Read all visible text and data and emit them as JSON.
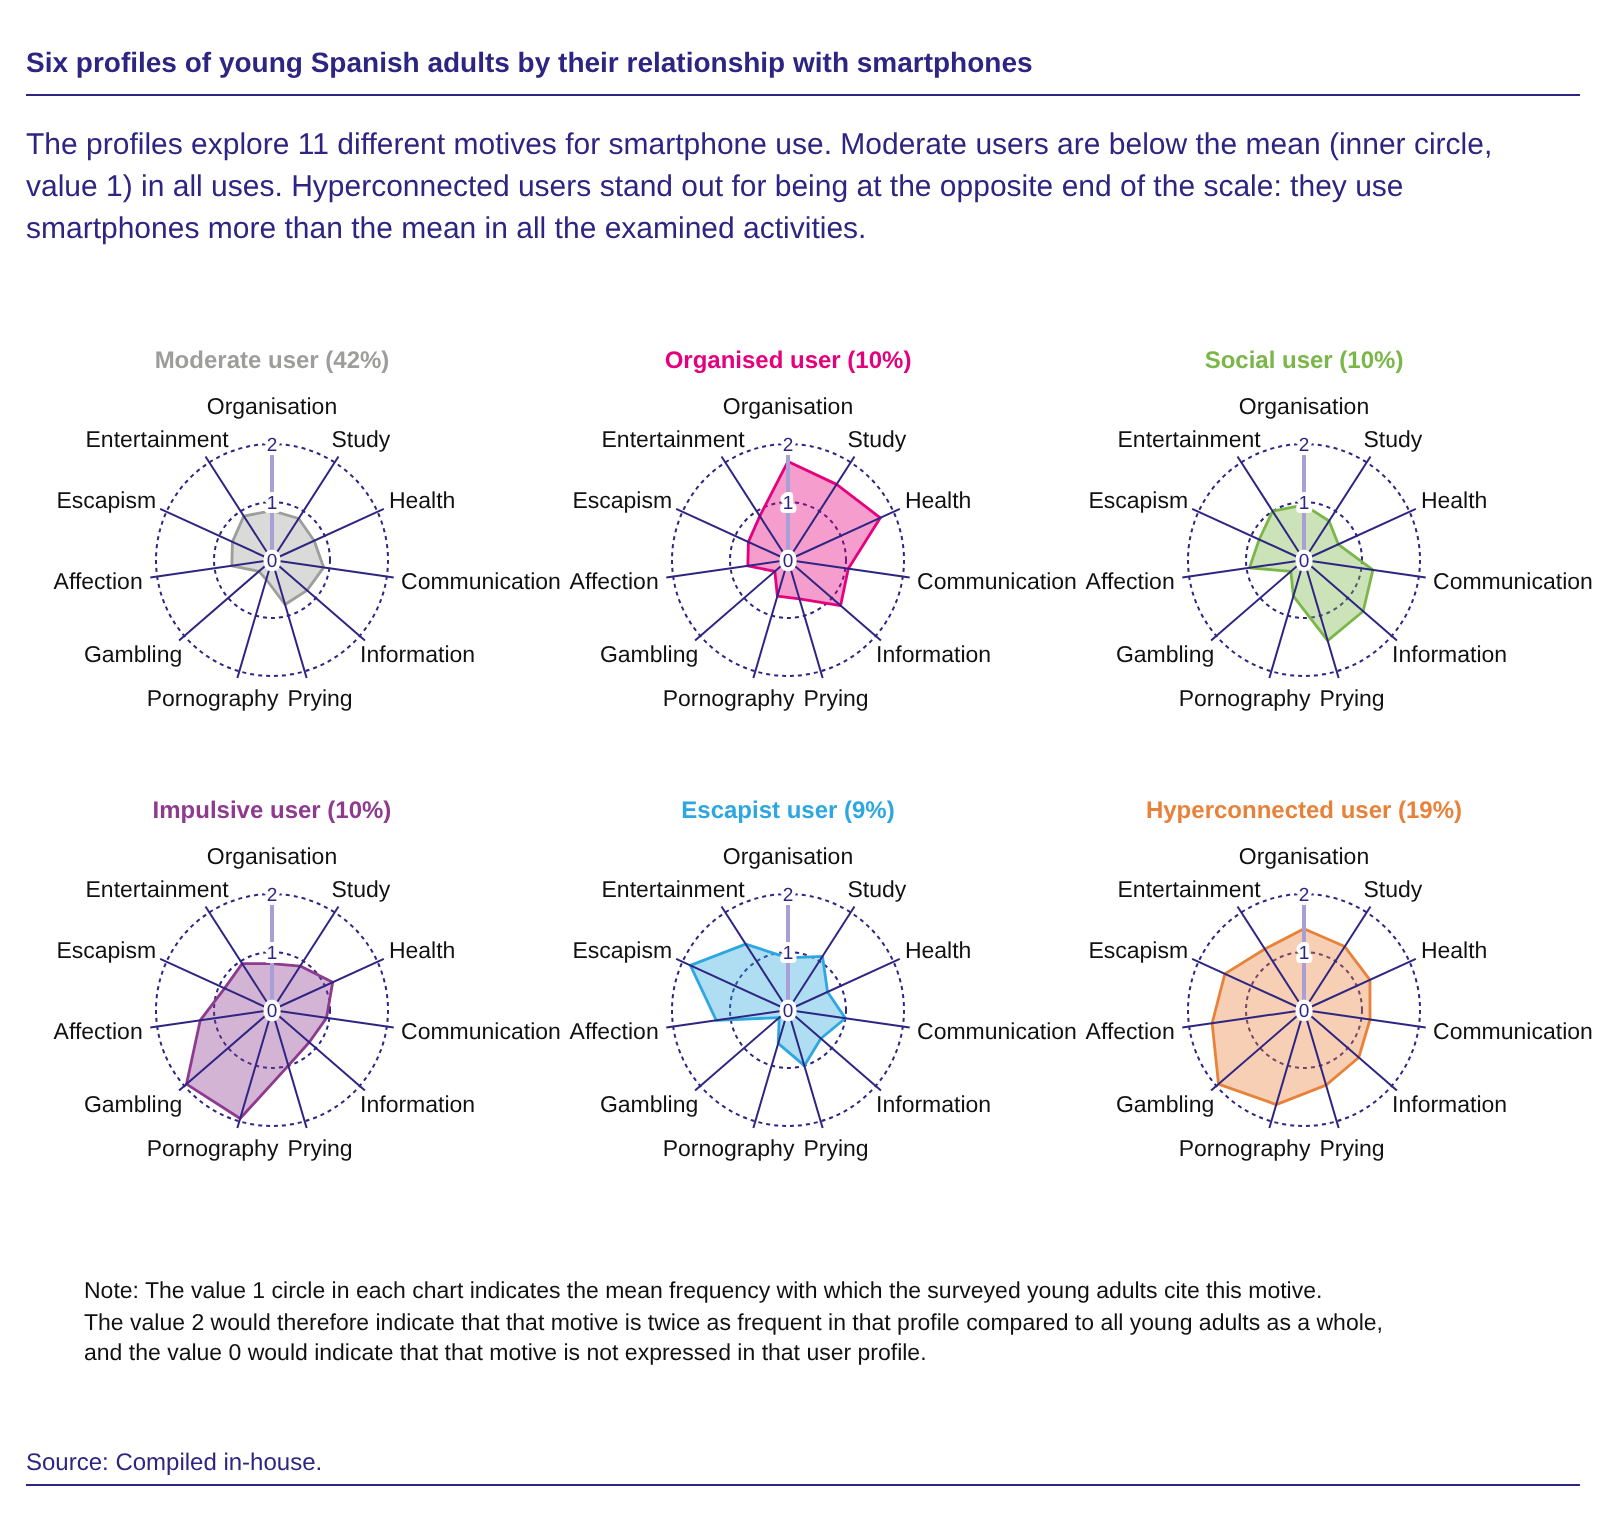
{
  "chart_data": [
    {
      "type": "other",
      "title": "Six profiles of young Spanish adults by their relationship with smartphones",
      "subtitle": "The profiles explore 11 different motives for smartphone use. Moderate users are below the mean (inner circle, value 1) in all uses. Hyperconnected users stand out for being at the opposite end of the scale: they use smartphones more than the mean in all the examined activities."
    },
    {
      "type": "radar",
      "title": "Moderate user (42%)",
      "categories": [
        "Organisation",
        "Study",
        "Health",
        "Communication",
        "Information",
        "Prying",
        "Pornography",
        "Gambling",
        "Affection",
        "Escapism",
        "Entertainment"
      ],
      "series": [
        {
          "color": "#9d9d9c",
          "values": [
            0.85,
            0.85,
            0.8,
            0.9,
            0.8,
            0.8,
            0.35,
            0.3,
            0.7,
            0.75,
            0.9
          ]
        }
      ],
      "ylim": [
        0,
        2
      ],
      "yticks": [
        0,
        1,
        2
      ],
      "grid": true
    },
    {
      "type": "radar",
      "title": "Organised user (10%)",
      "categories": [
        "Organisation",
        "Study",
        "Health",
        "Communication",
        "Information",
        "Prying",
        "Pornography",
        "Gambling",
        "Affection",
        "Escapism",
        "Entertainment"
      ],
      "series": [
        {
          "color": "#e5007e",
          "values": [
            1.7,
            1.55,
            1.75,
            1.05,
            1.2,
            0.7,
            0.65,
            0.3,
            0.7,
            0.75,
            0.9
          ]
        }
      ],
      "ylim": [
        0,
        2
      ],
      "yticks": [
        0,
        1,
        2
      ],
      "grid": true
    },
    {
      "type": "radar",
      "title": "Social user (10%)",
      "categories": [
        "Organisation",
        "Study",
        "Health",
        "Communication",
        "Information",
        "Prying",
        "Pornography",
        "Gambling",
        "Affection",
        "Escapism",
        "Entertainment"
      ],
      "series": [
        {
          "color": "#7ab648",
          "values": [
            0.95,
            0.8,
            0.65,
            1.2,
            1.35,
            1.45,
            0.65,
            0.3,
            0.95,
            0.85,
            1.0
          ]
        }
      ],
      "ylim": [
        0,
        2
      ],
      "yticks": [
        0,
        1,
        2
      ],
      "grid": true
    },
    {
      "type": "radar",
      "title": "Impulsive user (10%)",
      "categories": [
        "Organisation",
        "Study",
        "Health",
        "Communication",
        "Information",
        "Prying",
        "Pornography",
        "Gambling",
        "Affection",
        "Escapism",
        "Entertainment"
      ],
      "series": [
        {
          "color": "#8e3a8e",
          "values": [
            0.8,
            0.9,
            1.15,
            0.95,
            0.85,
            1.0,
            1.95,
            1.95,
            1.25,
            0.9,
            0.95
          ]
        }
      ],
      "ylim": [
        0,
        2
      ],
      "yticks": [
        0,
        1,
        2
      ],
      "grid": true
    },
    {
      "type": "radar",
      "title": "Escapist user (9%)",
      "categories": [
        "Organisation",
        "Study",
        "Health",
        "Communication",
        "Information",
        "Prying",
        "Pornography",
        "Gambling",
        "Affection",
        "Escapism",
        "Entertainment"
      ],
      "series": [
        {
          "color": "#2ea7e0",
          "values": [
            0.9,
            1.1,
            0.75,
            1.0,
            0.75,
            1.0,
            0.6,
            0.2,
            1.25,
            1.85,
            1.35
          ]
        }
      ],
      "ylim": [
        0,
        2
      ],
      "yticks": [
        0,
        1,
        2
      ],
      "grid": true
    },
    {
      "type": "radar",
      "title": "Hyperconnected user (19%)",
      "categories": [
        "Organisation",
        "Study",
        "Health",
        "Communication",
        "Information",
        "Prying",
        "Pornography",
        "Gambling",
        "Affection",
        "Escapism",
        "Entertainment"
      ],
      "series": [
        {
          "color": "#e8823a",
          "values": [
            1.4,
            1.3,
            1.25,
            1.15,
            1.25,
            1.35,
            1.7,
            1.95,
            1.6,
            1.5,
            1.25
          ]
        }
      ],
      "ylim": [
        0,
        2
      ],
      "yticks": [
        0,
        1,
        2
      ],
      "grid": true
    },
    {
      "type": "other",
      "annotations": [
        "Note: The value 1 circle in each chart indicates the mean frequency with which the surveyed young adults cite this motive.\nThe value 2 would therefore indicate that that motive is twice as frequent in that profile compared to all young adults as a whole,\nand the value 0 would indicate that that motive is not expressed in that user profile.",
        "Source: Compiled in-house."
      ]
    }
  ]
}
